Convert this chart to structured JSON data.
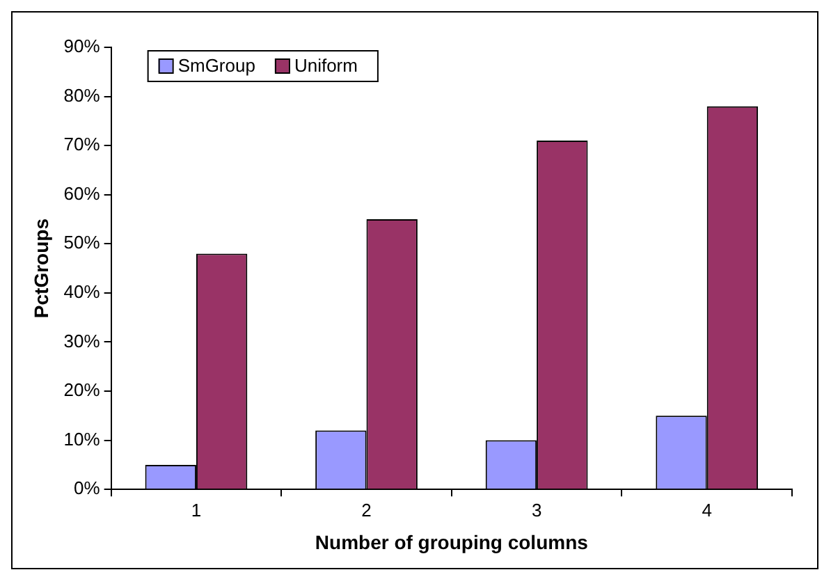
{
  "chart_data": {
    "type": "bar",
    "xlabel": "Number of grouping columns",
    "ylabel": "PctGroups",
    "categories": [
      "1",
      "2",
      "3",
      "4"
    ],
    "series": [
      {
        "name": "SmGroup",
        "color": "#9999ff",
        "values": [
          5,
          12,
          10,
          15
        ]
      },
      {
        "name": "Uniform",
        "color": "#993366",
        "values": [
          48,
          55,
          71,
          78
        ]
      }
    ],
    "ylim": [
      0,
      90
    ],
    "yticks": [
      {
        "value": 0,
        "label": "0%"
      },
      {
        "value": 10,
        "label": "10%"
      },
      {
        "value": 20,
        "label": "20%"
      },
      {
        "value": 30,
        "label": "30%"
      },
      {
        "value": 40,
        "label": "40%"
      },
      {
        "value": 50,
        "label": "50%"
      },
      {
        "value": 60,
        "label": "60%"
      },
      {
        "value": 70,
        "label": "70%"
      },
      {
        "value": 80,
        "label": "80%"
      },
      {
        "value": 90,
        "label": "90%"
      }
    ],
    "grid": false,
    "legend": "top left"
  }
}
